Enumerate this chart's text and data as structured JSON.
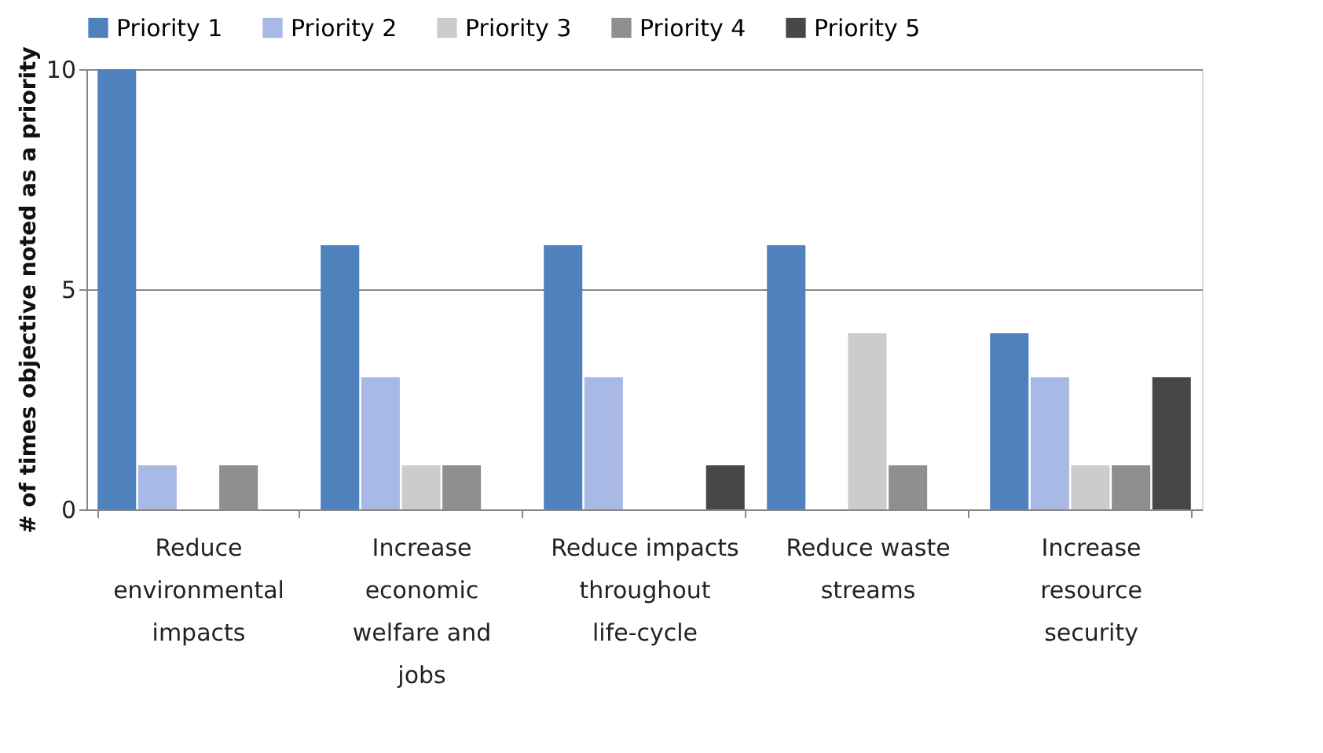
{
  "chart_data": {
    "type": "bar",
    "ylabel": "# of times objective noted as a priority",
    "categories": [
      "Reduce environmental impacts",
      "Increase economic welfare and jobs",
      "Reduce impacts throughout life-cycle",
      "Reduce waste streams",
      "Increase resource security"
    ],
    "series": [
      {
        "name": "Priority 1",
        "color": "#4f81bd",
        "values": [
          10,
          6,
          6,
          6,
          4
        ]
      },
      {
        "name": "Priority 2",
        "color": "#a9b9e6",
        "values": [
          1,
          3,
          3,
          0,
          3
        ]
      },
      {
        "name": "Priority 3",
        "color": "#cccccc",
        "values": [
          0,
          1,
          0,
          4,
          1
        ]
      },
      {
        "name": "Priority 4",
        "color": "#8f8f8f",
        "values": [
          1,
          1,
          0,
          1,
          1
        ]
      },
      {
        "name": "Priority 5",
        "color": "#474747",
        "values": [
          0,
          0,
          1,
          0,
          3
        ]
      }
    ],
    "ylim": [
      0,
      10
    ],
    "yticks": [
      0,
      5,
      10
    ],
    "grid": "y",
    "legend": "top"
  }
}
